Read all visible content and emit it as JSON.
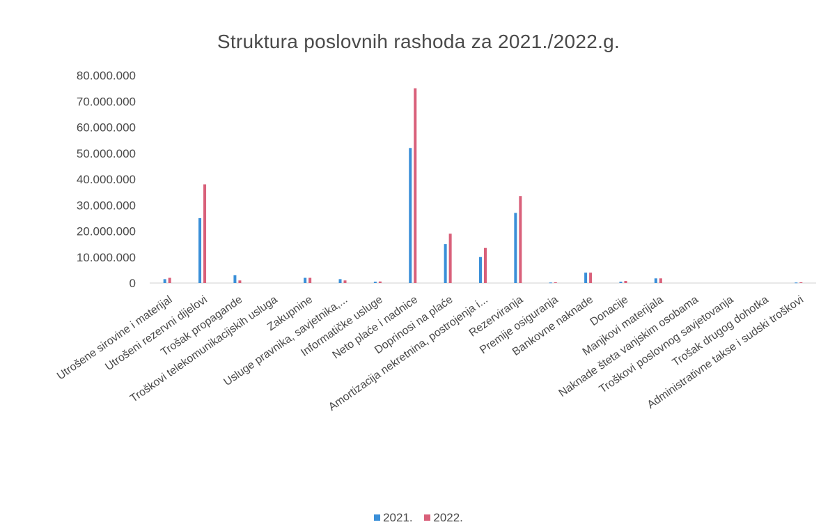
{
  "colors": {
    "series_2021": "#3a8fd8",
    "series_2022": "#d9607a",
    "axis_text": "#4a4a4a",
    "axis_line": "#d0d0d0"
  },
  "chart_data": {
    "type": "bar",
    "title": "Struktura poslovnih rashoda za 2021./2022.g.",
    "xlabel": "",
    "ylabel": "",
    "ylim": [
      0,
      80000000
    ],
    "yticks": [
      "0",
      "10.000.000",
      "20.000.000",
      "30.000.000",
      "40.000.000",
      "50.000.000",
      "60.000.000",
      "70.000.000",
      "80.000.000"
    ],
    "grid": false,
    "legend_position": "bottom",
    "categories": [
      "Utrošene sirovine i materijal",
      "Utrošeni rezervni dijelovi",
      "Trošak propagande",
      "Troškovi telekomunikacijskih usluga",
      "Zakupnine",
      "Usluge pravnika, savjetnika,...",
      "Informatičke usluge",
      "Neto plaće i nadnice",
      "Doprinosi na plaće",
      "Amortizacija nekretnina, postrojenja i...",
      "Rezerviranja",
      "Premije osiguranja",
      "Bankovne naknade",
      "Donacije",
      "Manjkovi materijala",
      "Naknade šteta vanjskim osobama",
      "Troškovi poslovnog savjetovanja",
      "Trošak drugog dohotka",
      "Administrativne takse i sudski troškovi"
    ],
    "series": [
      {
        "name": "2021.",
        "values": [
          1500000,
          25000000,
          3000000,
          0,
          2000000,
          1500000,
          500000,
          52000000,
          15000000,
          10000000,
          27000000,
          200000,
          4000000,
          500000,
          1800000,
          0,
          0,
          0,
          200000
        ]
      },
      {
        "name": "2022.",
        "values": [
          2000000,
          38000000,
          1000000,
          0,
          2000000,
          1000000,
          600000,
          75000000,
          19000000,
          13500000,
          33500000,
          300000,
          4000000,
          800000,
          1800000,
          0,
          0,
          0,
          300000
        ]
      }
    ]
  }
}
